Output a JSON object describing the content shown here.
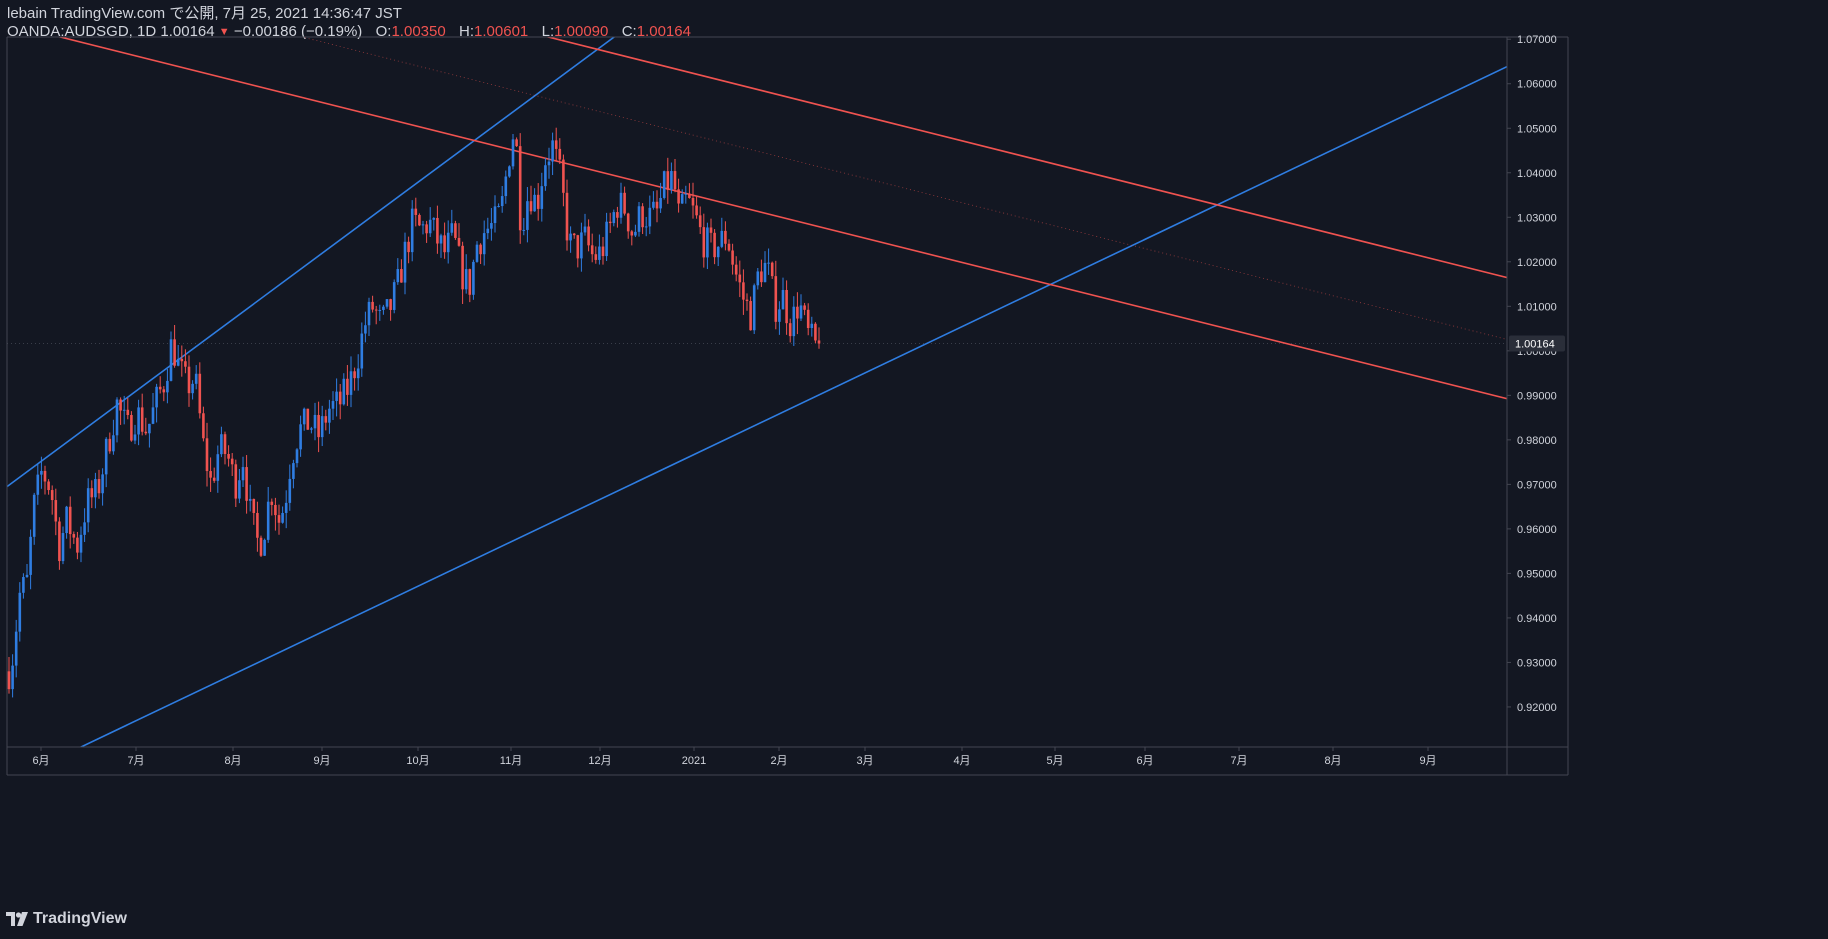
{
  "header": {
    "publish_line": "lebain TradingView.com で公開, 7月 25, 2021 14:36:47 JST",
    "symbol": "OANDA:AUDSGD, 1D",
    "last_price": "1.00164",
    "change": "−0.00186 (−0.19%)",
    "open_label": "O:",
    "open_value": "1.00350",
    "high_label": "H:",
    "high_value": "1.00601",
    "low_label": "L:",
    "low_value": "1.00090",
    "close_label": "C:",
    "close_value": "1.00164"
  },
  "footer": {
    "brand": "TradingView"
  },
  "colors": {
    "background": "#131722",
    "up": "#2962ff",
    "down": "#f05350",
    "channel_up": "#2f7de1",
    "channel_down": "#f05350",
    "axis_text": "#d1d4dc",
    "axis_line": "#434651"
  },
  "chart_data": {
    "type": "candlestick",
    "symbol": "OANDA:AUDSGD",
    "interval": "1D",
    "ylim": [
      0.911,
      1.0705
    ],
    "y_ticks": [
      "1.07000",
      "1.06000",
      "1.05000",
      "1.04000",
      "1.03000",
      "1.02000",
      "1.01000",
      "1.00000",
      "0.99000",
      "0.98000",
      "0.97000",
      "0.96000",
      "0.95000",
      "0.94000",
      "0.93000",
      "0.92000"
    ],
    "x_ticks": [
      "6月",
      "7月",
      "8月",
      "9月",
      "10月",
      "11月",
      "12月",
      "2021",
      "2月",
      "3月",
      "4月",
      "5月",
      "6月",
      "7月",
      "8月",
      "9月"
    ],
    "last_price_label": "1.00164",
    "last_price": 1.00164,
    "close_path": [
      {
        "d": 0,
        "c": 0.928
      },
      {
        "d": 5,
        "c": 0.933
      },
      {
        "d": 10,
        "c": 0.945
      },
      {
        "d": 18,
        "c": 0.948
      },
      {
        "d": 25,
        "c": 0.965
      },
      {
        "d": 33,
        "c": 0.973
      },
      {
        "d": 42,
        "c": 0.969
      },
      {
        "d": 50,
        "c": 0.956
      },
      {
        "d": 58,
        "c": 0.962
      },
      {
        "d": 68,
        "c": 0.956
      },
      {
        "d": 78,
        "c": 0.966
      },
      {
        "d": 88,
        "c": 0.968
      },
      {
        "d": 98,
        "c": 0.978
      },
      {
        "d": 108,
        "c": 0.988
      },
      {
        "d": 118,
        "c": 0.982
      },
      {
        "d": 128,
        "c": 0.986
      },
      {
        "d": 138,
        "c": 0.982
      },
      {
        "d": 148,
        "c": 0.989
      },
      {
        "d": 155,
        "c": 0.993
      },
      {
        "d": 163,
        "c": 1.002
      },
      {
        "d": 170,
        "c": 0.996
      },
      {
        "d": 178,
        "c": 0.992
      },
      {
        "d": 186,
        "c": 0.994
      },
      {
        "d": 194,
        "c": 0.979
      },
      {
        "d": 202,
        "c": 0.97
      },
      {
        "d": 210,
        "c": 0.978
      },
      {
        "d": 218,
        "c": 0.977
      },
      {
        "d": 226,
        "c": 0.97
      },
      {
        "d": 234,
        "c": 0.976
      },
      {
        "d": 242,
        "c": 0.962
      },
      {
        "d": 250,
        "c": 0.956
      },
      {
        "d": 256,
        "c": 0.961
      },
      {
        "d": 262,
        "c": 0.969
      },
      {
        "d": 270,
        "c": 0.962
      },
      {
        "d": 276,
        "c": 0.966
      },
      {
        "d": 282,
        "c": 0.976
      },
      {
        "d": 290,
        "c": 0.982
      },
      {
        "d": 300,
        "c": 0.984
      },
      {
        "d": 310,
        "c": 0.981
      },
      {
        "d": 320,
        "c": 0.987
      },
      {
        "d": 330,
        "c": 0.988
      },
      {
        "d": 340,
        "c": 0.992
      },
      {
        "d": 348,
        "c": 0.998
      },
      {
        "d": 356,
        "c": 1.006
      },
      {
        "d": 364,
        "c": 1.01
      },
      {
        "d": 372,
        "c": 1.006
      },
      {
        "d": 380,
        "c": 1.009
      },
      {
        "d": 388,
        "c": 1.014
      },
      {
        "d": 396,
        "c": 1.022
      },
      {
        "d": 404,
        "c": 1.029
      },
      {
        "d": 412,
        "c": 1.027
      },
      {
        "d": 420,
        "c": 1.029
      },
      {
        "d": 428,
        "c": 1.025
      },
      {
        "d": 436,
        "c": 1.022
      },
      {
        "d": 444,
        "c": 1.026
      },
      {
        "d": 452,
        "c": 1.018
      },
      {
        "d": 460,
        "c": 1.014
      },
      {
        "d": 468,
        "c": 1.024
      },
      {
        "d": 476,
        "c": 1.027
      },
      {
        "d": 484,
        "c": 1.028
      },
      {
        "d": 492,
        "c": 1.031
      },
      {
        "d": 500,
        "c": 1.044
      },
      {
        "d": 506,
        "c": 1.051
      },
      {
        "d": 512,
        "c": 1.028
      },
      {
        "d": 520,
        "c": 1.036
      },
      {
        "d": 528,
        "c": 1.033
      },
      {
        "d": 536,
        "c": 1.043
      },
      {
        "d": 544,
        "c": 1.046
      },
      {
        "d": 552,
        "c": 1.038
      },
      {
        "d": 560,
        "c": 1.024
      },
      {
        "d": 568,
        "c": 1.023
      },
      {
        "d": 576,
        "c": 1.025
      },
      {
        "d": 584,
        "c": 1.021
      },
      {
        "d": 592,
        "c": 1.022
      },
      {
        "d": 600,
        "c": 1.027
      },
      {
        "d": 608,
        "c": 1.033
      },
      {
        "d": 616,
        "c": 1.032
      },
      {
        "d": 624,
        "c": 1.026
      },
      {
        "d": 632,
        "c": 1.031
      },
      {
        "d": 640,
        "c": 1.03
      },
      {
        "d": 648,
        "c": 1.031
      },
      {
        "d": 656,
        "c": 1.037
      },
      {
        "d": 664,
        "c": 1.039
      },
      {
        "d": 670,
        "c": 1.03
      },
      {
        "d": 678,
        "c": 1.034
      },
      {
        "d": 686,
        "c": 1.03
      },
      {
        "d": 694,
        "c": 1.025
      },
      {
        "d": 702,
        "c": 1.023
      },
      {
        "d": 710,
        "c": 1.024
      },
      {
        "d": 718,
        "c": 1.026
      },
      {
        "d": 726,
        "c": 1.018
      },
      {
        "d": 734,
        "c": 1.012
      },
      {
        "d": 742,
        "c": 1.008
      },
      {
        "d": 750,
        "c": 1.018
      },
      {
        "d": 758,
        "c": 1.019
      },
      {
        "d": 766,
        "c": 1.01
      },
      {
        "d": 774,
        "c": 1.012
      },
      {
        "d": 782,
        "c": 1.006
      },
      {
        "d": 790,
        "c": 1.011
      },
      {
        "d": 798,
        "c": 1.004
      },
      {
        "d": 806,
        "c": 1.001
      },
      {
        "d": 812,
        "c": 1.00164
      }
    ],
    "channels": [
      {
        "name": "",
        "color": "#2f7de1",
        "points": [
          {
            "d": 0,
            "p": 0.9695
          },
          {
            "d": 948,
            "p": 1.1272
          }
        ],
        "style": "solid"
      },
      {
        "name": "",
        "color": "#2f7de1",
        "points": [
          {
            "d": 60,
            "p": 0.9095
          },
          {
            "d": 1508,
            "p": 1.0647
          }
        ],
        "style": "solid"
      },
      {
        "name": "",
        "color": "#f05350",
        "points": [
          {
            "d": 48,
            "p": 1.0708
          },
          {
            "d": 1508,
            "p": 0.9888
          }
        ],
        "style": "solid"
      },
      {
        "name": "",
        "color": "#f05350",
        "points": [
          {
            "d": 536,
            "p": 1.0708
          },
          {
            "d": 1508,
            "p": 1.016
          }
        ],
        "style": "solid"
      },
      {
        "name": "",
        "color": "#f05350",
        "points": [
          {
            "d": 290,
            "p": 1.0708
          },
          {
            "d": 1508,
            "p": 1.0021
          }
        ],
        "style": "dotted"
      }
    ]
  }
}
